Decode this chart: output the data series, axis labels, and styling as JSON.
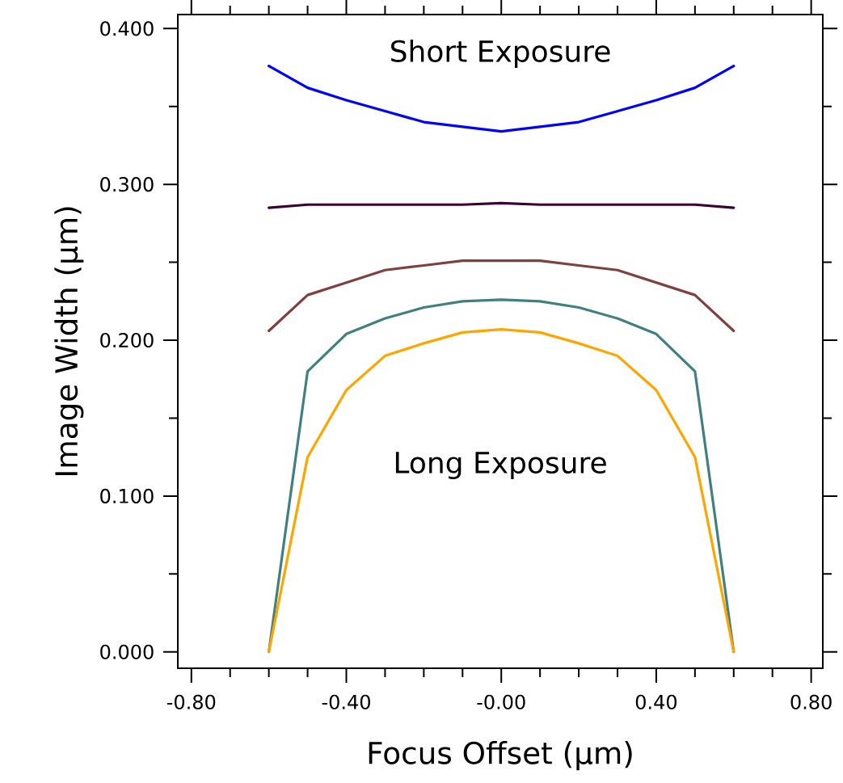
{
  "chart_data": {
    "type": "line",
    "xlabel": "Focus Offset (µm)",
    "ylabel": "Image Width (µm)",
    "annotations": [
      "Short Exposure",
      "Long Exposure"
    ],
    "x": [
      -0.6,
      -0.5,
      -0.4,
      -0.3,
      -0.2,
      -0.1,
      0,
      0.1,
      0.2,
      0.3,
      0.4,
      0.5,
      0.6
    ],
    "series": [
      {
        "color": "#0000ff",
        "values": [
          0.376,
          0.362,
          0.354,
          0.347,
          0.34,
          0.337,
          0.334,
          0.337,
          0.34,
          0.347,
          0.354,
          0.362,
          0.376
        ]
      },
      {
        "color": "#3d0036",
        "values": [
          0.285,
          0.287,
          0.287,
          0.287,
          0.287,
          0.287,
          0.288,
          0.287,
          0.287,
          0.287,
          0.287,
          0.287,
          0.285
        ]
      },
      {
        "color": "#7f4040",
        "values": [
          0.206,
          0.229,
          0.237,
          0.245,
          0.248,
          0.251,
          0.251,
          0.251,
          0.248,
          0.245,
          0.237,
          0.229,
          0.206
        ]
      },
      {
        "color": "#408080",
        "values": [
          0,
          0.18,
          0.204,
          0.214,
          0.221,
          0.225,
          0.226,
          0.225,
          0.221,
          0.214,
          0.204,
          0.18,
          0
        ]
      },
      {
        "color": "#ffa500",
        "values": [
          0,
          0.125,
          0.168,
          0.19,
          0.198,
          0.205,
          0.207,
          0.205,
          0.198,
          0.19,
          0.168,
          0.125,
          0
        ]
      }
    ],
    "xlim": [
      -0.835,
      0.83
    ],
    "ylim": [
      -0.0105,
      0.409
    ],
    "xticks": [
      {
        "value": -0.8,
        "label": "-0.80"
      },
      {
        "value": -0.7,
        "label": null
      },
      {
        "value": -0.6,
        "label": null
      },
      {
        "value": -0.5,
        "label": null
      },
      {
        "value": -0.4,
        "label": "-0.40"
      },
      {
        "value": -0.3,
        "label": null
      },
      {
        "value": -0.2,
        "label": null
      },
      {
        "value": -0.1,
        "label": null
      },
      {
        "value": 0,
        "label": "-0.00"
      },
      {
        "value": 0.1,
        "label": null
      },
      {
        "value": 0.2,
        "label": null
      },
      {
        "value": 0.3,
        "label": null
      },
      {
        "value": 0.4,
        "label": "0.40"
      },
      {
        "value": 0.5,
        "label": null
      },
      {
        "value": 0.6,
        "label": null
      },
      {
        "value": 0.7,
        "label": null
      },
      {
        "value": 0.8,
        "label": "0.80"
      }
    ],
    "yticks": [
      {
        "value": 0,
        "label": "0.000"
      },
      {
        "value": 0.05,
        "label": null
      },
      {
        "value": 0.1,
        "label": "0.100"
      },
      {
        "value": 0.15,
        "label": null
      },
      {
        "value": 0.2,
        "label": "0.200"
      },
      {
        "value": 0.25,
        "label": null
      },
      {
        "value": 0.3,
        "label": "0.300"
      },
      {
        "value": 0.35,
        "label": null
      },
      {
        "value": 0.4,
        "label": "0.400"
      }
    ],
    "line_style": "solid",
    "grid": false,
    "legend": false
  }
}
